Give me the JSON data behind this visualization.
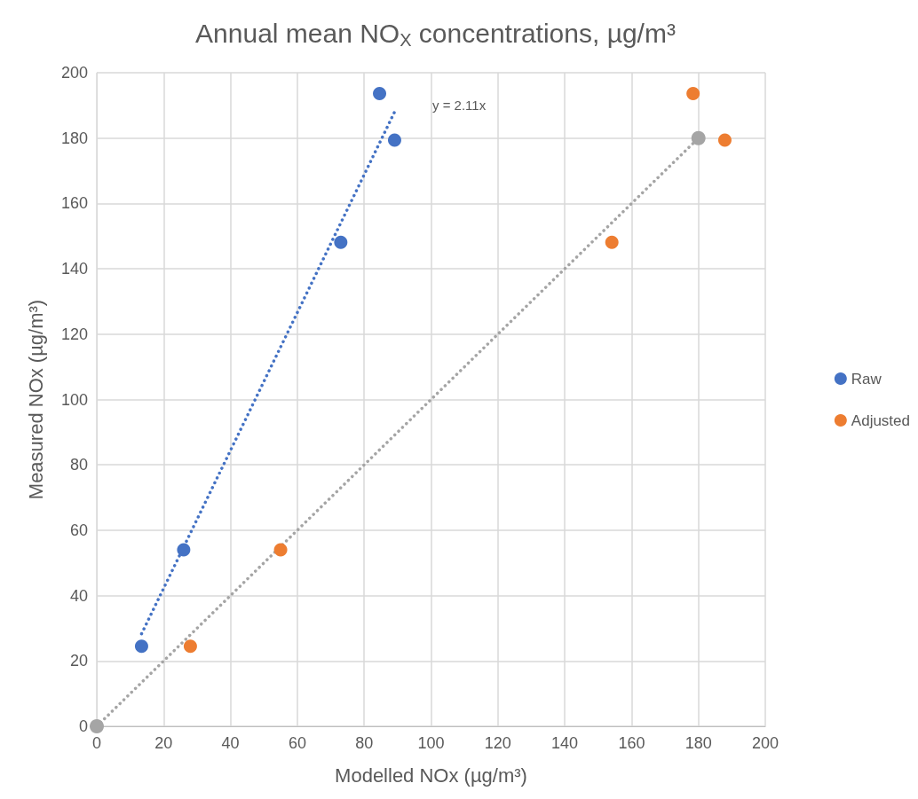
{
  "chart_data": {
    "type": "scatter",
    "title": "Annual mean NO$_{X}$ concentrations, µg/m³",
    "xlabel": "Modelled NOx (µg/m³)",
    "ylabel": "Measured NOx (µg/m³)",
    "xlim": [
      0,
      200
    ],
    "xticks": [
      0,
      20,
      40,
      60,
      80,
      100,
      120,
      140,
      160,
      180,
      200
    ],
    "ylim": [
      0,
      200
    ],
    "yticks": [
      0,
      20,
      40,
      60,
      80,
      100,
      120,
      140,
      160,
      180,
      200
    ],
    "grid": true,
    "legend": "right",
    "marker": "circle",
    "annotations": [
      "y = 2.11x"
    ],
    "series": [
      {
        "name": "Raw",
        "color": "#4472c4",
        "x": [
          13.4,
          26.0,
          73.0,
          84.6,
          89.1
        ],
        "values": [
          24.5,
          54.0,
          148.1,
          193.6,
          179.4
        ]
      },
      {
        "name": "Adjusted",
        "color": "#ed7d31",
        "x": [
          28.0,
          55.0,
          154.1,
          178.4,
          187.9
        ],
        "values": [
          24.5,
          54.0,
          148.1,
          193.6,
          179.4
        ]
      },
      {
        "type": "line",
        "color": "#4472c4",
        "marker": "none",
        "line_style": "dotted",
        "x": [
          13.4,
          89.1
        ],
        "values": [
          28.3,
          188.0
        ]
      },
      {
        "type": "line",
        "color": "#a5a5a5",
        "marker": "circle",
        "line_style": "dotted",
        "x": [
          0,
          180
        ],
        "values": [
          0,
          180
        ]
      }
    ]
  }
}
